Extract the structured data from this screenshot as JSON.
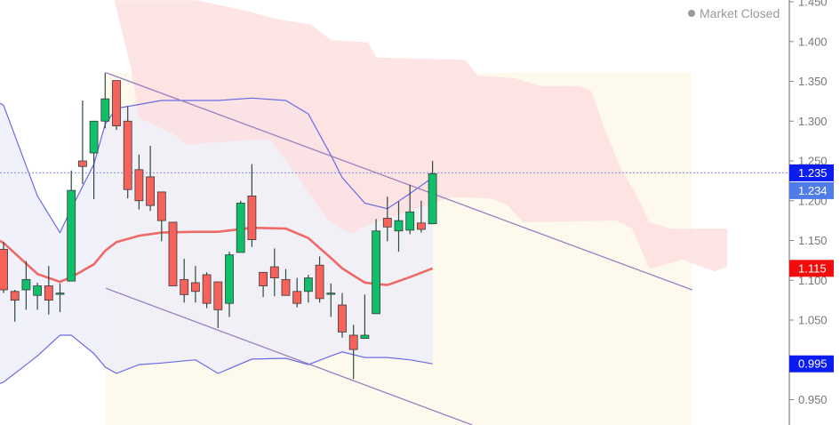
{
  "status": {
    "label": "Market Closed",
    "icon": "dot-icon"
  },
  "colors": {
    "up": "#0fbf6a",
    "down": "#f7635a",
    "outline": "#3a3a3a",
    "bb_line": "#6a6ae6",
    "bb_fill": "#ececfb",
    "basis": "#ee5a55",
    "cloud": "#fde0e2",
    "channel": "#9a7fc0",
    "channel_fill": "#fdf9ec",
    "last_price": "#0b1cf0",
    "close_label": "#4f7ce8",
    "basis_label": "#f20d0d",
    "lower_label": "#0b1cf0"
  },
  "chart_data": {
    "type": "candlestick",
    "y_axis": {
      "position": "right",
      "ylim": [
        0.92,
        1.452
      ],
      "ticks": [
        "0.950",
        "1.050",
        "1.100",
        "1.150",
        "1.200",
        "1.250",
        "1.300",
        "1.350",
        "1.400",
        "1.450"
      ]
    },
    "grid": false,
    "candles": [
      {
        "o": 1.139,
        "h": 1.148,
        "l": 1.084,
        "c": 1.088
      },
      {
        "o": 1.086,
        "h": 1.088,
        "l": 1.048,
        "c": 1.075
      },
      {
        "o": 1.088,
        "h": 1.124,
        "l": 1.063,
        "c": 1.101
      },
      {
        "o": 1.081,
        "h": 1.097,
        "l": 1.063,
        "c": 1.093
      },
      {
        "o": 1.093,
        "h": 1.118,
        "l": 1.057,
        "c": 1.075
      },
      {
        "o": 1.084,
        "h": 1.096,
        "l": 1.06,
        "c": 1.084
      },
      {
        "o": 1.099,
        "h": 1.238,
        "l": 1.099,
        "c": 1.213
      },
      {
        "o": 1.25,
        "h": 1.326,
        "l": 1.221,
        "c": 1.243
      },
      {
        "o": 1.26,
        "h": 1.3,
        "l": 1.202,
        "c": 1.3
      },
      {
        "o": 1.3,
        "h": 1.361,
        "l": 1.291,
        "c": 1.328
      },
      {
        "o": 1.351,
        "h": 1.351,
        "l": 1.289,
        "c": 1.294
      },
      {
        "o": 1.3,
        "h": 1.319,
        "l": 1.203,
        "c": 1.214
      },
      {
        "o": 1.239,
        "h": 1.258,
        "l": 1.189,
        "c": 1.2
      },
      {
        "o": 1.23,
        "h": 1.269,
        "l": 1.187,
        "c": 1.194
      },
      {
        "o": 1.211,
        "h": 1.211,
        "l": 1.149,
        "c": 1.175
      },
      {
        "o": 1.173,
        "h": 1.173,
        "l": 1.093,
        "c": 1.093
      },
      {
        "o": 1.101,
        "h": 1.127,
        "l": 1.072,
        "c": 1.082
      },
      {
        "o": 1.097,
        "h": 1.118,
        "l": 1.072,
        "c": 1.086
      },
      {
        "o": 1.107,
        "h": 1.11,
        "l": 1.065,
        "c": 1.071
      },
      {
        "o": 1.098,
        "h": 1.098,
        "l": 1.04,
        "c": 1.063
      },
      {
        "o": 1.071,
        "h": 1.136,
        "l": 1.054,
        "c": 1.132
      },
      {
        "o": 1.135,
        "h": 1.2,
        "l": 1.135,
        "c": 1.197
      },
      {
        "o": 1.206,
        "h": 1.246,
        "l": 1.142,
        "c": 1.151
      },
      {
        "o": 1.11,
        "h": 1.11,
        "l": 1.079,
        "c": 1.093
      },
      {
        "o": 1.117,
        "h": 1.14,
        "l": 1.08,
        "c": 1.103
      },
      {
        "o": 1.101,
        "h": 1.114,
        "l": 1.081,
        "c": 1.081
      },
      {
        "o": 1.086,
        "h": 1.103,
        "l": 1.066,
        "c": 1.071
      },
      {
        "o": 1.086,
        "h": 1.107,
        "l": 1.072,
        "c": 1.103
      },
      {
        "o": 1.119,
        "h": 1.13,
        "l": 1.072,
        "c": 1.077
      },
      {
        "o": 1.084,
        "h": 1.096,
        "l": 1.054,
        "c": 1.084
      },
      {
        "o": 1.069,
        "h": 1.084,
        "l": 1.028,
        "c": 1.035
      },
      {
        "o": 1.031,
        "h": 1.044,
        "l": 0.976,
        "c": 1.013
      },
      {
        "o": 1.027,
        "h": 1.082,
        "l": 1.027,
        "c": 1.031
      },
      {
        "o": 1.058,
        "h": 1.177,
        "l": 1.058,
        "c": 1.162
      },
      {
        "o": 1.178,
        "h": 1.205,
        "l": 1.149,
        "c": 1.167
      },
      {
        "o": 1.162,
        "h": 1.199,
        "l": 1.136,
        "c": 1.175
      },
      {
        "o": 1.163,
        "h": 1.22,
        "l": 1.158,
        "c": 1.186
      },
      {
        "o": 1.172,
        "h": 1.2,
        "l": 1.16,
        "c": 1.164
      },
      {
        "o": 1.171,
        "h": 1.25,
        "l": 1.171,
        "c": 1.234
      }
    ],
    "bollinger_upper": [
      [
        -0.4,
        1.323
      ],
      [
        0,
        1.32
      ],
      [
        3,
        1.206
      ],
      [
        5,
        1.16
      ],
      [
        6,
        1.19
      ],
      [
        8,
        1.246
      ],
      [
        9,
        1.296
      ],
      [
        10,
        1.316
      ],
      [
        12,
        1.321
      ],
      [
        14,
        1.326
      ],
      [
        17,
        1.326
      ],
      [
        19,
        1.326
      ],
      [
        22,
        1.329
      ],
      [
        25,
        1.326
      ],
      [
        27,
        1.309
      ],
      [
        29,
        1.257
      ],
      [
        30,
        1.229
      ],
      [
        32,
        1.197
      ],
      [
        34,
        1.19
      ],
      [
        36,
        1.209
      ],
      [
        38,
        1.229
      ]
    ],
    "bollinger_lower": [
      [
        -0.4,
        0.97
      ],
      [
        0,
        0.972
      ],
      [
        3,
        1.005
      ],
      [
        5,
        1.031
      ],
      [
        6,
        1.031
      ],
      [
        8,
        1.008
      ],
      [
        9,
        0.991
      ],
      [
        10,
        0.983
      ],
      [
        12,
        0.994
      ],
      [
        14,
        0.996
      ],
      [
        17,
        1.0
      ],
      [
        19,
        0.983
      ],
      [
        22,
        1.001
      ],
      [
        25,
        1.002
      ],
      [
        27,
        0.994
      ],
      [
        29,
        1.005
      ],
      [
        30,
        1.01
      ],
      [
        32,
        1.003
      ],
      [
        34,
        1.003
      ],
      [
        36,
        1.0
      ],
      [
        38,
        0.995
      ]
    ],
    "basis": [
      [
        -0.4,
        1.15
      ],
      [
        0,
        1.147
      ],
      [
        3,
        1.108
      ],
      [
        5,
        1.098
      ],
      [
        6,
        1.104
      ],
      [
        8,
        1.12
      ],
      [
        9,
        1.137
      ],
      [
        10,
        1.148
      ],
      [
        12,
        1.156
      ],
      [
        14,
        1.16
      ],
      [
        17,
        1.161
      ],
      [
        19,
        1.161
      ],
      [
        22,
        1.166
      ],
      [
        25,
        1.165
      ],
      [
        27,
        1.153
      ],
      [
        29,
        1.128
      ],
      [
        30,
        1.115
      ],
      [
        32,
        1.097
      ],
      [
        34,
        1.094
      ],
      [
        36,
        1.104
      ],
      [
        38,
        1.115
      ]
    ],
    "cloud": [
      [
        9.8,
        1.452
      ],
      [
        17.1,
        1.452
      ],
      [
        21.4,
        1.439
      ],
      [
        24.3,
        1.428
      ],
      [
        27.2,
        1.422
      ],
      [
        29.0,
        1.402
      ],
      [
        32.3,
        1.399
      ],
      [
        33.0,
        1.38
      ],
      [
        40.9,
        1.377
      ],
      [
        42.0,
        1.357
      ],
      [
        45.3,
        1.354
      ],
      [
        47.5,
        1.344
      ],
      [
        51.1,
        1.344
      ],
      [
        52.1,
        1.337
      ],
      [
        53.2,
        1.292
      ],
      [
        54.6,
        1.243
      ],
      [
        56.1,
        1.206
      ],
      [
        57.2,
        1.173
      ],
      [
        59.1,
        1.165
      ],
      [
        64.1,
        1.165
      ],
      [
        64.1,
        1.117
      ],
      [
        63.0,
        1.111
      ],
      [
        60.1,
        1.126
      ],
      [
        57.2,
        1.114
      ],
      [
        55.7,
        1.165
      ],
      [
        54.3,
        1.175
      ],
      [
        46.0,
        1.173
      ],
      [
        44.6,
        1.195
      ],
      [
        43.1,
        1.203
      ],
      [
        40.9,
        1.204
      ],
      [
        39.5,
        1.204
      ],
      [
        32.3,
        1.17
      ],
      [
        30.8,
        1.158
      ],
      [
        28.7,
        1.176
      ],
      [
        26.1,
        1.229
      ],
      [
        23.6,
        1.277
      ],
      [
        18.2,
        1.273
      ],
      [
        16.4,
        1.27
      ],
      [
        14.9,
        1.285
      ],
      [
        12.0,
        1.304
      ],
      [
        11.3,
        1.366
      ]
    ],
    "channel_upper": [
      [
        9.06,
        1.361
      ],
      [
        61.0,
        1.088
      ]
    ],
    "channel_lower": [
      [
        9.06,
        1.09
      ],
      [
        61.0,
        0.815
      ]
    ],
    "last_price_line": 1.235,
    "price_labels": [
      {
        "text": "1.235",
        "value": 1.235,
        "color_key": "last_price"
      },
      {
        "text": "1.234",
        "value": 1.234,
        "color_key": "close_label"
      },
      {
        "text": "1.115",
        "value": 1.115,
        "color_key": "basis_label"
      },
      {
        "text": "0.995",
        "value": 0.995,
        "color_key": "lower_label"
      }
    ]
  }
}
